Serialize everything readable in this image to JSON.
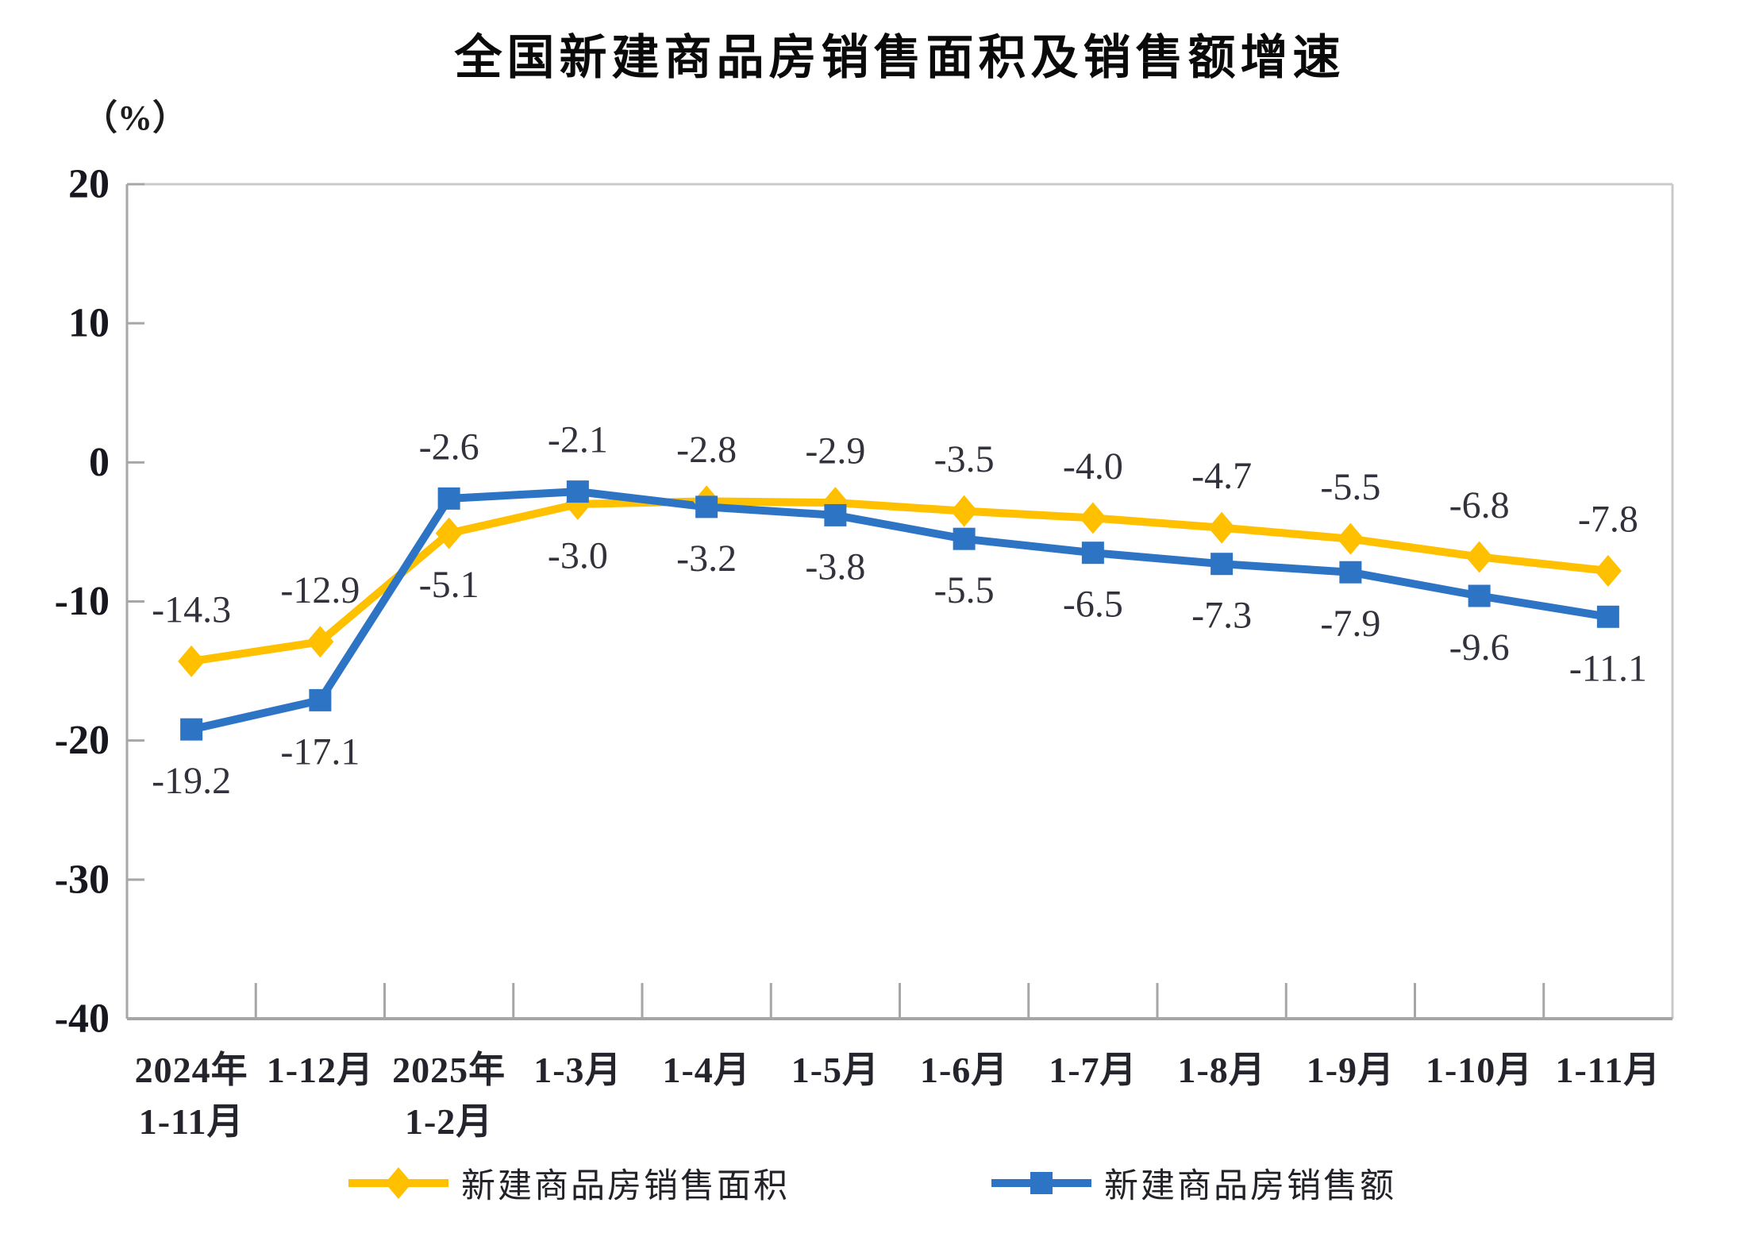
{
  "chart_data": {
    "type": "line",
    "title": "全国新建商品房销售面积及销售额增速",
    "ylabel": "（%）",
    "xlabel": "",
    "ylim": [
      -40,
      20
    ],
    "yticks": [
      20,
      10,
      0,
      -10,
      -20,
      -30,
      -40
    ],
    "grid": false,
    "legend_position": "bottom",
    "categories": [
      "2024年\n1-11月",
      "1-12月",
      "2025年\n1-2月",
      "1-3月",
      "1-4月",
      "1-5月",
      "1-6月",
      "1-7月",
      "1-8月",
      "1-9月",
      "1-10月",
      "1-11月"
    ],
    "series": [
      {
        "id": "sales-area",
        "name": "新建商品房销售面积",
        "color": "#FFC000",
        "marker": "diamond",
        "values": [
          -14.3,
          -12.9,
          -5.1,
          -3.0,
          -2.8,
          -2.9,
          -3.5,
          -4.0,
          -4.7,
          -5.5,
          -6.8,
          -7.8
        ],
        "value_labels": [
          "-14.3",
          "-12.9",
          "-5.1",
          "-3.0",
          "-2.8",
          "-2.9",
          "-3.5",
          "-4.0",
          "-4.7",
          "-5.5",
          "-6.8",
          "-7.8"
        ],
        "label_side": [
          "above",
          "above",
          "below",
          "below",
          "above",
          "above",
          "above",
          "above",
          "above",
          "above",
          "above",
          "above"
        ]
      },
      {
        "id": "sales-value",
        "name": "新建商品房销售额",
        "color": "#2E74C4",
        "marker": "square",
        "values": [
          -19.2,
          -17.1,
          -2.6,
          -2.1,
          -3.2,
          -3.8,
          -5.5,
          -6.5,
          -7.3,
          -7.9,
          -9.6,
          -11.1
        ],
        "value_labels": [
          "-19.2",
          "-17.1",
          "-2.6",
          "-2.1",
          "-3.2",
          "-3.8",
          "-5.5",
          "-6.5",
          "-7.3",
          "-7.9",
          "-9.6",
          "-11.1"
        ],
        "label_side": [
          "below",
          "below",
          "above",
          "above",
          "below",
          "below",
          "below",
          "below",
          "below",
          "below",
          "below",
          "below"
        ]
      }
    ]
  }
}
